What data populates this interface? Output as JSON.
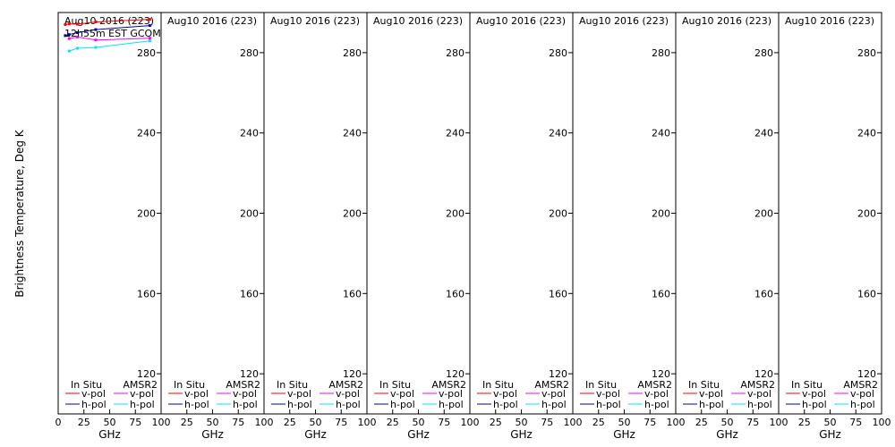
{
  "chart_data": {
    "type": "line",
    "ylabel": "Brightness Temperature, Deg K",
    "xlabel": "GHz",
    "panel_title": "Aug10 2016 (223)",
    "subtitle": "12h55m EST GCOM",
    "xlim": [
      0,
      100
    ],
    "ylim": [
      100,
      300
    ],
    "x_ticks": [
      0,
      25,
      50,
      75,
      100
    ],
    "x_tick_labels": [
      "0",
      "25",
      "50",
      "75",
      "100"
    ],
    "y_ticks": [
      120,
      160,
      200,
      240,
      280
    ],
    "legend": {
      "in_situ_label": "In Situ",
      "amsr2_label": "AMSR2",
      "v_pol_label": "v-pol",
      "h_pol_label": "h-pol"
    },
    "colors": {
      "in_situ_v": "#ff0000",
      "in_situ_h": "#0000aa",
      "amsr2_v": "#ff00ff",
      "amsr2_h": "#00e5ff"
    },
    "panels": [
      {
        "series": [
          {
            "key": "in_situ_v",
            "x": [
              6.9,
              10.65,
              18.7,
              36.5,
              89.0
            ],
            "y": [
              294.0,
              294.3,
              294.2,
              295.3,
              296.6
            ]
          },
          {
            "key": "in_situ_h",
            "x": [
              6.9,
              10.65,
              18.7,
              36.5,
              89.0
            ],
            "y": [
              288.5,
              289.0,
              290.0,
              291.5,
              293.5
            ]
          },
          {
            "key": "amsr2_v",
            "x": [
              10.65,
              18.7,
              36.5,
              89.0
            ],
            "y": [
              287.0,
              287.8,
              286.3,
              287.2
            ]
          },
          {
            "key": "amsr2_h",
            "x": [
              10.65,
              18.7,
              36.5,
              89.0
            ],
            "y": [
              280.8,
              282.2,
              282.6,
              285.9
            ]
          }
        ]
      },
      {
        "series": []
      },
      {
        "series": []
      },
      {
        "series": []
      },
      {
        "series": []
      },
      {
        "series": []
      },
      {
        "series": []
      },
      {
        "series": []
      }
    ]
  }
}
